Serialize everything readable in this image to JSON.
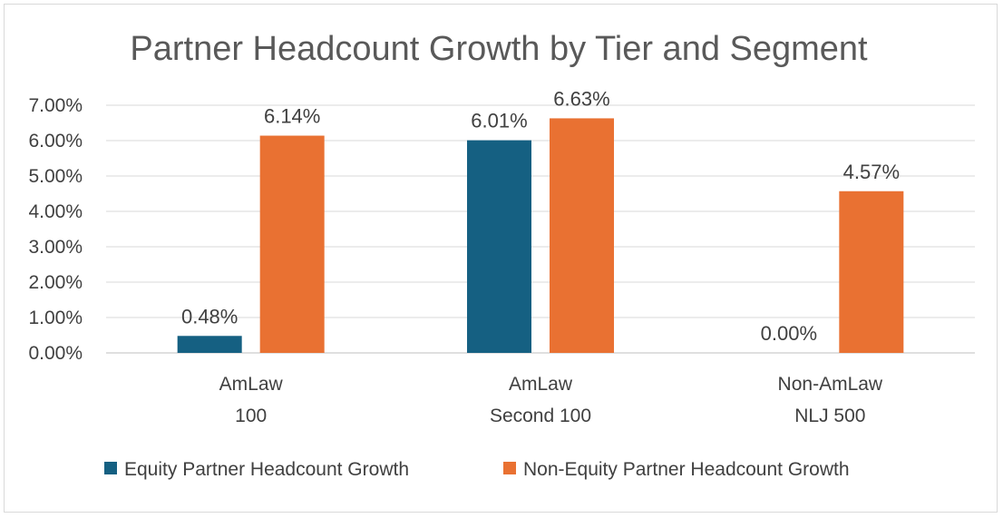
{
  "chart_data": {
    "type": "bar",
    "title": "Partner Headcount Growth by Tier and Segment",
    "xlabel": "",
    "ylabel": "",
    "ylim": [
      0,
      7
    ],
    "y_ticks": [
      0,
      1,
      2,
      3,
      4,
      5,
      6,
      7
    ],
    "y_tick_labels": [
      "0.00%",
      "1.00%",
      "2.00%",
      "3.00%",
      "4.00%",
      "5.00%",
      "6.00%",
      "7.00%"
    ],
    "grid": true,
    "legend_position": "bottom",
    "categories": [
      [
        "AmLaw",
        "100"
      ],
      [
        "AmLaw",
        "Second 100"
      ],
      [
        "Non-AmLaw",
        "NLJ 500"
      ]
    ],
    "series": [
      {
        "name": "Equity Partner Headcount Growth",
        "color": "#156082",
        "values": [
          0.48,
          6.01,
          0.0
        ],
        "labels": [
          "0.48%",
          "6.01%",
          "0.00%"
        ]
      },
      {
        "name": "Non-Equity Partner Headcount Growth",
        "color": "#E97132",
        "values": [
          6.14,
          6.63,
          4.57
        ],
        "labels": [
          "6.14%",
          "6.63%",
          "4.57%"
        ]
      }
    ]
  }
}
